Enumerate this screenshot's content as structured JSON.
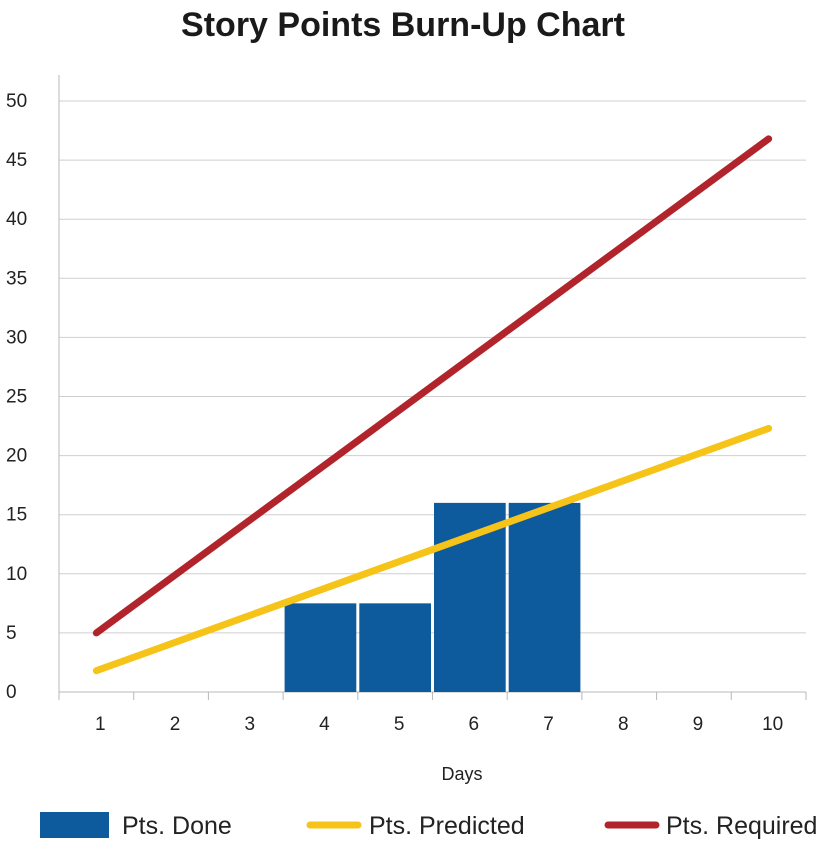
{
  "chart_data": {
    "type": "bar",
    "title": "Story Points Burn-Up Chart",
    "xlabel": "Days",
    "ylabel": "",
    "categories": [
      "1",
      "2",
      "3",
      "4",
      "5",
      "6",
      "7",
      "8",
      "9",
      "10"
    ],
    "y_ticks": [
      "0",
      "5",
      "10",
      "15",
      "20",
      "25",
      "30",
      "35",
      "40",
      "45",
      "50"
    ],
    "ylim": [
      0,
      50
    ],
    "grid": true,
    "legend_position": "bottom",
    "series": [
      {
        "name": "Pts. Done",
        "kind": "bar",
        "color": "#0d5a9c",
        "values": [
          null,
          null,
          null,
          7.5,
          7.5,
          16,
          16,
          null,
          null,
          null
        ]
      },
      {
        "name": "Pts. Predicted",
        "kind": "line",
        "color": "#f6c419",
        "x": [
          1,
          10
        ],
        "values": [
          1.8,
          22.3
        ]
      },
      {
        "name": "Pts. Required",
        "kind": "line",
        "color": "#b2242c",
        "x": [
          1,
          10
        ],
        "values": [
          5,
          46.8
        ]
      }
    ]
  }
}
